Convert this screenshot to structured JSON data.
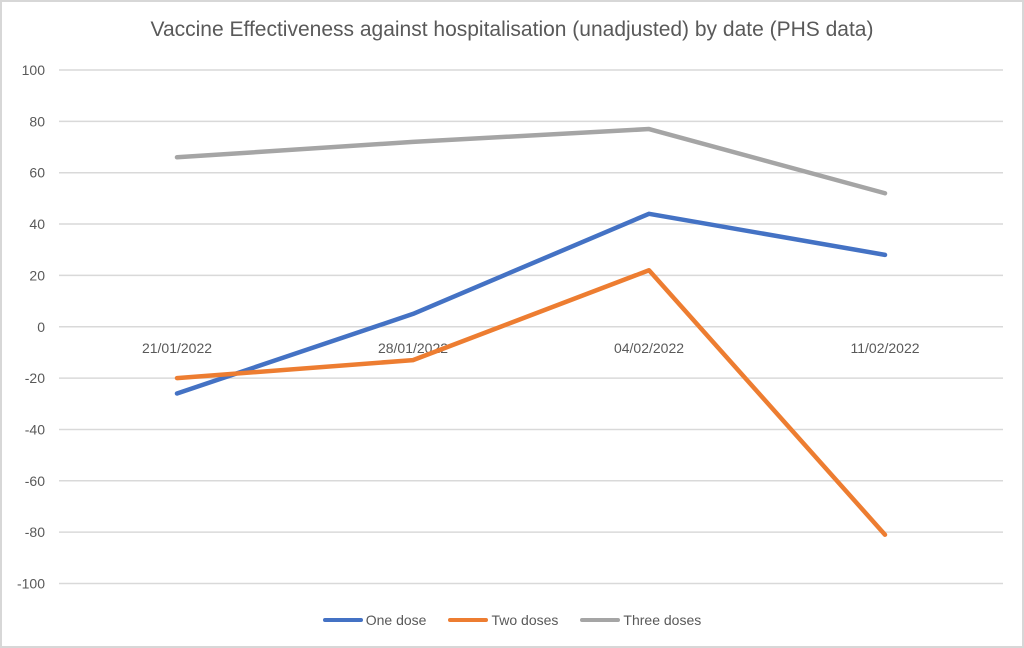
{
  "chart_data": {
    "type": "line",
    "title": "Vaccine Effectiveness against hospitalisation (unadjusted) by date (PHS data)",
    "xlabel": "",
    "ylabel": "",
    "categories": [
      "21/01/2022",
      "28/01/2022",
      "04/02/2022",
      "11/02/2022"
    ],
    "series": [
      {
        "name": "One dose",
        "color": "#4472C4",
        "values": [
          -26,
          5,
          44,
          28
        ]
      },
      {
        "name": "Two doses",
        "color": "#ED7D31",
        "values": [
          -20,
          -13,
          22,
          -81
        ]
      },
      {
        "name": "Three doses",
        "color": "#A5A5A5",
        "values": [
          66,
          72,
          77,
          52
        ]
      }
    ],
    "ylim": [
      -100,
      100
    ],
    "ytick_step": 20,
    "yticks": [
      100,
      80,
      60,
      40,
      20,
      0,
      -20,
      -40,
      -60,
      -80,
      -100
    ],
    "grid": true,
    "legend_position": "bottom",
    "colors": {
      "gridline": "#d9d9d9",
      "axis_text": "#595959",
      "title_text": "#595959",
      "frame_border": "#d7d7d7",
      "background": "#ffffff"
    }
  }
}
